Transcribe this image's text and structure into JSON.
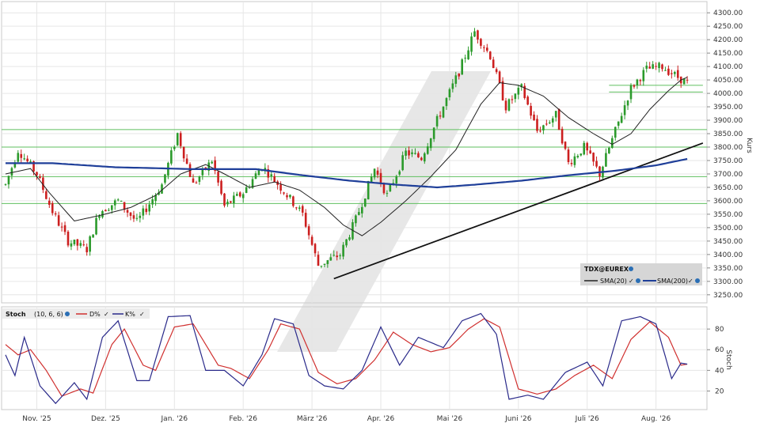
{
  "chart_data": [
    {
      "type": "candlestick",
      "instrument": "TDX@EUREX",
      "ylabel": "Kurs",
      "ylim": [
        3220,
        4330
      ],
      "yticks": [
        "3250.00",
        "3300.00",
        "3350.00",
        "3400.00",
        "3450.00",
        "3500.00",
        "3550.00",
        "3600.00",
        "3650.00",
        "3700.00",
        "3750.00",
        "3800.00",
        "3850.00",
        "3900.00",
        "3950.00",
        "4000.00",
        "4050.00",
        "4100.00",
        "4150.00",
        "4200.00",
        "4250.00",
        "4300.00"
      ],
      "months": [
        "Nov. '25",
        "Dez. '25",
        "Jan. '26",
        "Feb. '26",
        "März '26",
        "Apr. '26",
        "Mai '26",
        "Juni '26",
        "Juli '26",
        "Aug. '26"
      ],
      "anchors": [
        {
          "d": 0,
          "v": 3660
        },
        {
          "d": 4,
          "v": 3790
        },
        {
          "d": 10,
          "v": 3700
        },
        {
          "d": 15,
          "v": 3560
        },
        {
          "d": 20,
          "v": 3450
        },
        {
          "d": 26,
          "v": 3420
        },
        {
          "d": 30,
          "v": 3560
        },
        {
          "d": 36,
          "v": 3600
        },
        {
          "d": 42,
          "v": 3520
        },
        {
          "d": 50,
          "v": 3660
        },
        {
          "d": 55,
          "v": 3850
        },
        {
          "d": 60,
          "v": 3660
        },
        {
          "d": 66,
          "v": 3750
        },
        {
          "d": 70,
          "v": 3580
        },
        {
          "d": 76,
          "v": 3630
        },
        {
          "d": 82,
          "v": 3730
        },
        {
          "d": 88,
          "v": 3650
        },
        {
          "d": 95,
          "v": 3550
        },
        {
          "d": 100,
          "v": 3360
        },
        {
          "d": 107,
          "v": 3400
        },
        {
          "d": 112,
          "v": 3530
        },
        {
          "d": 118,
          "v": 3720
        },
        {
          "d": 122,
          "v": 3620
        },
        {
          "d": 128,
          "v": 3780
        },
        {
          "d": 133,
          "v": 3760
        },
        {
          "d": 138,
          "v": 3900
        },
        {
          "d": 145,
          "v": 4080
        },
        {
          "d": 150,
          "v": 4230
        },
        {
          "d": 155,
          "v": 4140
        },
        {
          "d": 160,
          "v": 3950
        },
        {
          "d": 165,
          "v": 4020
        },
        {
          "d": 170,
          "v": 3860
        },
        {
          "d": 176,
          "v": 3920
        },
        {
          "d": 180,
          "v": 3740
        },
        {
          "d": 185,
          "v": 3800
        },
        {
          "d": 190,
          "v": 3700
        },
        {
          "d": 195,
          "v": 3860
        },
        {
          "d": 200,
          "v": 4020
        },
        {
          "d": 205,
          "v": 4090
        },
        {
          "d": 210,
          "v": 4100
        },
        {
          "d": 215,
          "v": 4060
        },
        {
          "d": 218,
          "v": 4040
        }
      ],
      "sma20": [
        {
          "d": 0,
          "v": 3700
        },
        {
          "d": 8,
          "v": 3720
        },
        {
          "d": 14,
          "v": 3630
        },
        {
          "d": 22,
          "v": 3525
        },
        {
          "d": 30,
          "v": 3545
        },
        {
          "d": 40,
          "v": 3575
        },
        {
          "d": 48,
          "v": 3620
        },
        {
          "d": 56,
          "v": 3700
        },
        {
          "d": 64,
          "v": 3735
        },
        {
          "d": 70,
          "v": 3700
        },
        {
          "d": 78,
          "v": 3650
        },
        {
          "d": 86,
          "v": 3670
        },
        {
          "d": 94,
          "v": 3640
        },
        {
          "d": 102,
          "v": 3575
        },
        {
          "d": 108,
          "v": 3510
        },
        {
          "d": 114,
          "v": 3470
        },
        {
          "d": 120,
          "v": 3520
        },
        {
          "d": 128,
          "v": 3600
        },
        {
          "d": 136,
          "v": 3690
        },
        {
          "d": 144,
          "v": 3790
        },
        {
          "d": 152,
          "v": 3960
        },
        {
          "d": 158,
          "v": 4040
        },
        {
          "d": 164,
          "v": 4030
        },
        {
          "d": 172,
          "v": 3990
        },
        {
          "d": 180,
          "v": 3910
        },
        {
          "d": 188,
          "v": 3850
        },
        {
          "d": 194,
          "v": 3810
        },
        {
          "d": 200,
          "v": 3850
        },
        {
          "d": 206,
          "v": 3940
        },
        {
          "d": 212,
          "v": 4010
        },
        {
          "d": 216,
          "v": 4050
        },
        {
          "d": 218,
          "v": 4060
        }
      ],
      "sma200": [
        {
          "d": 0,
          "v": 3740
        },
        {
          "d": 15,
          "v": 3740
        },
        {
          "d": 35,
          "v": 3725
        },
        {
          "d": 60,
          "v": 3718
        },
        {
          "d": 80,
          "v": 3718
        },
        {
          "d": 95,
          "v": 3695
        },
        {
          "d": 110,
          "v": 3675
        },
        {
          "d": 125,
          "v": 3660
        },
        {
          "d": 138,
          "v": 3650
        },
        {
          "d": 150,
          "v": 3660
        },
        {
          "d": 165,
          "v": 3675
        },
        {
          "d": 180,
          "v": 3695
        },
        {
          "d": 195,
          "v": 3712
        },
        {
          "d": 208,
          "v": 3732
        },
        {
          "d": 218,
          "v": 3756
        }
      ],
      "trendline": [
        {
          "d": 105,
          "v": 3310
        },
        {
          "d": 223,
          "v": 3815
        }
      ],
      "hlines": [
        3865,
        3800,
        3690,
        3590
      ],
      "short_hlines": [
        {
          "from": 193,
          "to": 223,
          "v": 4030
        },
        {
          "from": 193,
          "to": 223,
          "v": 4005
        }
      ],
      "legend": {
        "instrument": "TDX@EUREX",
        "sma20": "SMA(20)",
        "sma200": "SMA(200)"
      },
      "colors": {
        "up": "#2b9a2b",
        "down": "#cc1f1f",
        "sma20": "#222222",
        "sma200": "#1f3f99",
        "hline": "#5fbf5f",
        "trend": "#111111"
      }
    },
    {
      "type": "line",
      "title": "Stoch",
      "params": "(10, 6, 6)",
      "ylabel": "Stoch",
      "ylim": [
        2,
        100
      ],
      "yticks": [
        "20",
        "40",
        "60",
        "80"
      ],
      "series": [
        {
          "name": "D%",
          "color": "#d0302f",
          "points": [
            {
              "d": 0,
              "v": 65
            },
            {
              "d": 4,
              "v": 55
            },
            {
              "d": 8,
              "v": 60
            },
            {
              "d": 13,
              "v": 40
            },
            {
              "d": 18,
              "v": 15
            },
            {
              "d": 24,
              "v": 22
            },
            {
              "d": 28,
              "v": 18
            },
            {
              "d": 34,
              "v": 65
            },
            {
              "d": 38,
              "v": 80
            },
            {
              "d": 44,
              "v": 45
            },
            {
              "d": 48,
              "v": 40
            },
            {
              "d": 54,
              "v": 82
            },
            {
              "d": 60,
              "v": 85
            },
            {
              "d": 68,
              "v": 45
            },
            {
              "d": 72,
              "v": 42
            },
            {
              "d": 78,
              "v": 32
            },
            {
              "d": 84,
              "v": 60
            },
            {
              "d": 88,
              "v": 85
            },
            {
              "d": 94,
              "v": 80
            },
            {
              "d": 100,
              "v": 38
            },
            {
              "d": 106,
              "v": 27
            },
            {
              "d": 112,
              "v": 32
            },
            {
              "d": 118,
              "v": 50
            },
            {
              "d": 124,
              "v": 77
            },
            {
              "d": 130,
              "v": 65
            },
            {
              "d": 136,
              "v": 58
            },
            {
              "d": 142,
              "v": 62
            },
            {
              "d": 148,
              "v": 80
            },
            {
              "d": 153,
              "v": 90
            },
            {
              "d": 158,
              "v": 82
            },
            {
              "d": 164,
              "v": 22
            },
            {
              "d": 170,
              "v": 17
            },
            {
              "d": 176,
              "v": 22
            },
            {
              "d": 182,
              "v": 35
            },
            {
              "d": 188,
              "v": 45
            },
            {
              "d": 194,
              "v": 32
            },
            {
              "d": 200,
              "v": 70
            },
            {
              "d": 206,
              "v": 87
            },
            {
              "d": 212,
              "v": 72
            },
            {
              "d": 216,
              "v": 45
            },
            {
              "d": 218,
              "v": 46
            }
          ]
        },
        {
          "name": "K%",
          "color": "#2a2a8a",
          "points": [
            {
              "d": 0,
              "v": 55
            },
            {
              "d": 3,
              "v": 35
            },
            {
              "d": 6,
              "v": 72
            },
            {
              "d": 11,
              "v": 25
            },
            {
              "d": 16,
              "v": 8
            },
            {
              "d": 22,
              "v": 28
            },
            {
              "d": 26,
              "v": 12
            },
            {
              "d": 31,
              "v": 72
            },
            {
              "d": 36,
              "v": 88
            },
            {
              "d": 42,
              "v": 30
            },
            {
              "d": 46,
              "v": 30
            },
            {
              "d": 52,
              "v": 92
            },
            {
              "d": 59,
              "v": 93
            },
            {
              "d": 64,
              "v": 40
            },
            {
              "d": 70,
              "v": 40
            },
            {
              "d": 76,
              "v": 25
            },
            {
              "d": 82,
              "v": 55
            },
            {
              "d": 86,
              "v": 90
            },
            {
              "d": 92,
              "v": 85
            },
            {
              "d": 97,
              "v": 35
            },
            {
              "d": 102,
              "v": 25
            },
            {
              "d": 108,
              "v": 22
            },
            {
              "d": 114,
              "v": 40
            },
            {
              "d": 120,
              "v": 82
            },
            {
              "d": 126,
              "v": 45
            },
            {
              "d": 132,
              "v": 72
            },
            {
              "d": 140,
              "v": 62
            },
            {
              "d": 146,
              "v": 88
            },
            {
              "d": 152,
              "v": 95
            },
            {
              "d": 157,
              "v": 75
            },
            {
              "d": 161,
              "v": 12
            },
            {
              "d": 167,
              "v": 16
            },
            {
              "d": 172,
              "v": 12
            },
            {
              "d": 179,
              "v": 38
            },
            {
              "d": 186,
              "v": 48
            },
            {
              "d": 191,
              "v": 25
            },
            {
              "d": 197,
              "v": 88
            },
            {
              "d": 203,
              "v": 92
            },
            {
              "d": 208,
              "v": 85
            },
            {
              "d": 213,
              "v": 32
            },
            {
              "d": 216,
              "v": 47
            },
            {
              "d": 218,
              "v": 46
            }
          ]
        }
      ]
    }
  ]
}
